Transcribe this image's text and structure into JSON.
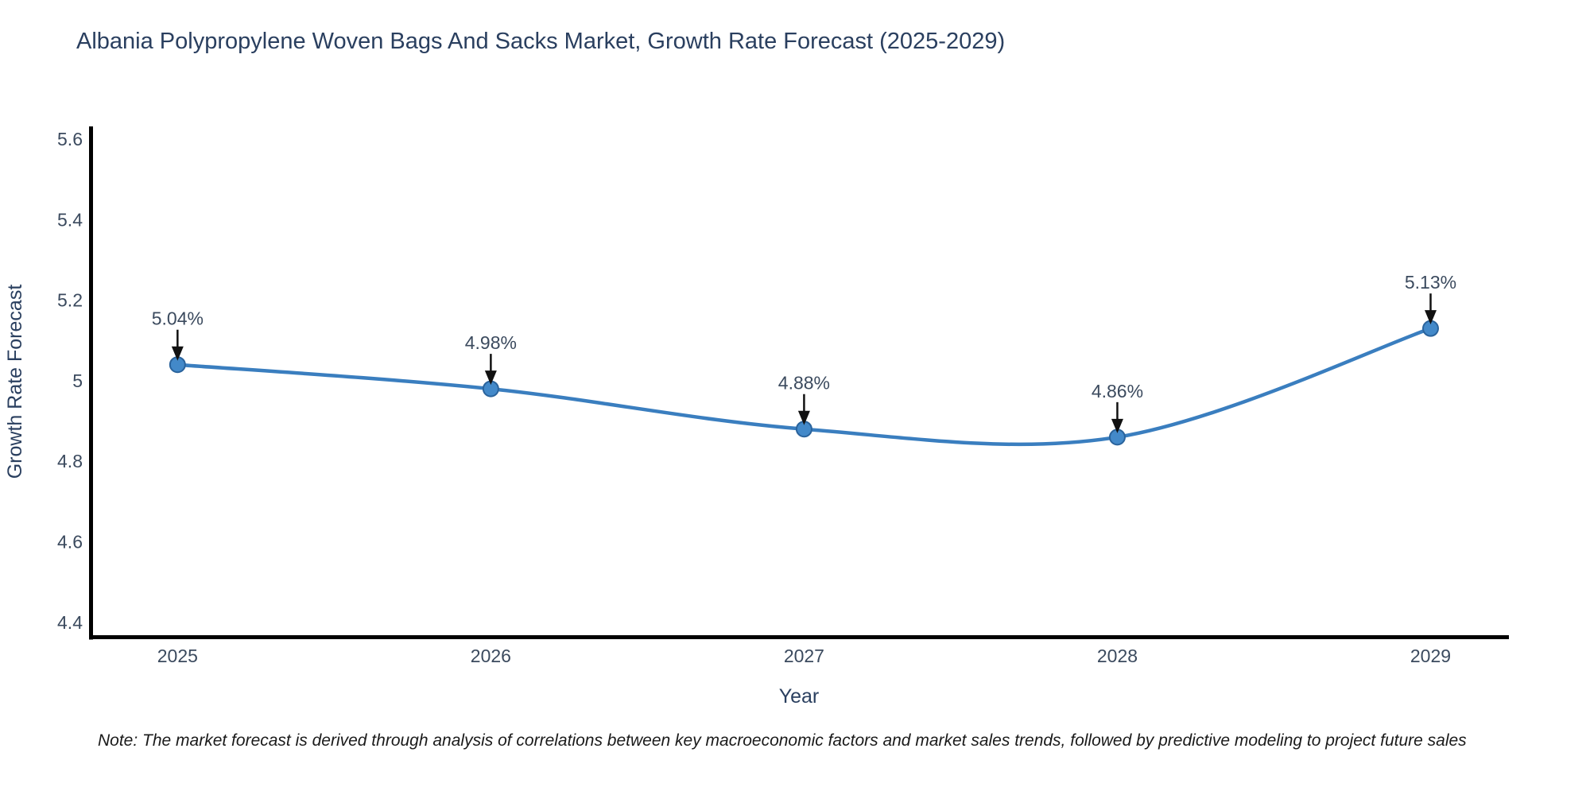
{
  "title": "Albania Polypropylene Woven Bags And Sacks Market, Growth Rate Forecast (2025-2029)",
  "note": "Note: The market forecast is derived through analysis of correlations between key macroeconomic factors and market sales trends, followed by predictive modeling to project future sales",
  "chart_data": {
    "type": "line",
    "x": [
      2025,
      2026,
      2027,
      2028,
      2029
    ],
    "values": [
      5.04,
      4.98,
      4.88,
      4.86,
      5.13
    ],
    "point_labels": [
      "5.04%",
      "4.98%",
      "4.88%",
      "4.86%",
      "5.13%"
    ],
    "xlabel": "Year",
    "ylabel": "Growth Rate Forecast",
    "yticks": [
      4.4,
      4.6,
      4.8,
      5.0,
      5.2,
      5.4,
      5.6
    ],
    "ytick_labels": [
      "4.4",
      "4.6",
      "4.8",
      "5",
      "5.2",
      "5.4",
      "5.6"
    ],
    "xlim": [
      2024.72,
      2029.25
    ],
    "ylim": [
      4.362,
      5.632
    ],
    "grid": false,
    "legend_position": "none",
    "line_shape": "spline",
    "colors": {
      "line": "#3a7ebf",
      "marker_fill": "#4389c9",
      "marker_edge": "#2a639c",
      "axis": "#000000",
      "title_text": "#2a3f5f",
      "tick_text": "#3b4a5e",
      "annotation_text": "#3b4a5e",
      "arrow": "#111111"
    }
  }
}
